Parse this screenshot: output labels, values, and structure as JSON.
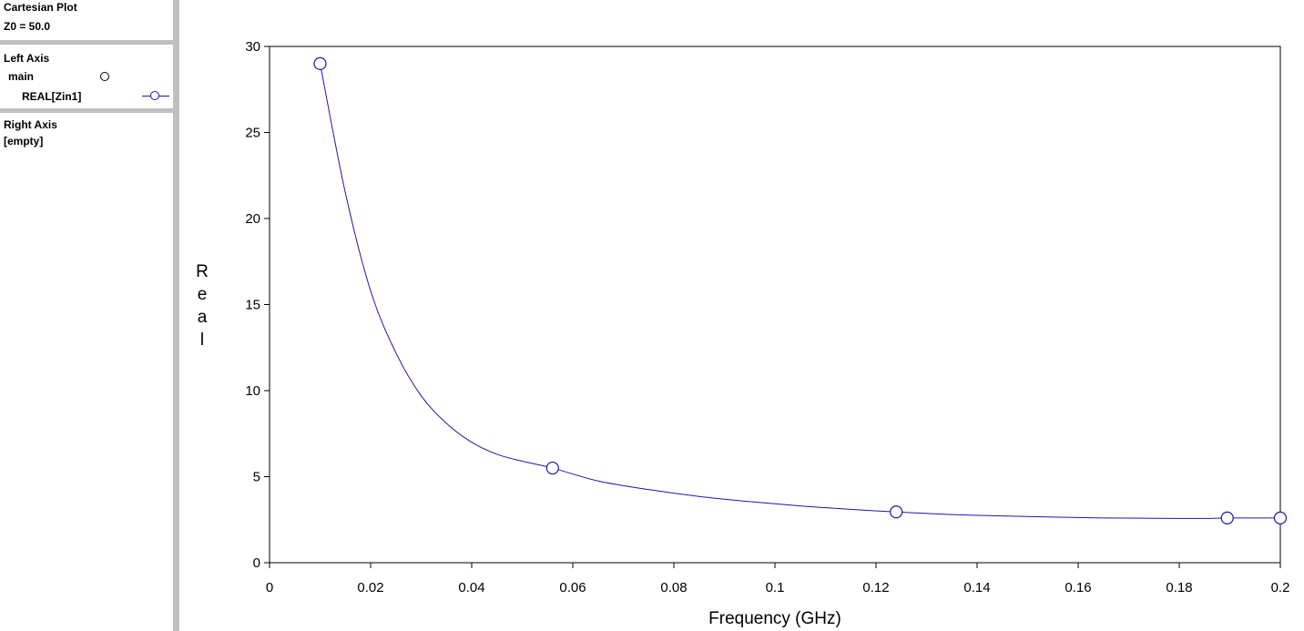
{
  "sidebar": {
    "title": "Cartesian Plot",
    "z0": "Z0 = 50.0",
    "left_axis": {
      "heading": "Left Axis",
      "group": "main",
      "trace": "REAL[Zin1]"
    },
    "right_axis": {
      "heading": "Right Axis",
      "value": "[empty]"
    }
  },
  "colors": {
    "trace": "#1a1aa6",
    "separator": "#c0c0c0"
  },
  "chart_data": {
    "type": "line",
    "xlabel": "Frequency (GHz)",
    "ylabel": "Real",
    "xlim": [
      0,
      0.2
    ],
    "ylim": [
      0,
      30
    ],
    "x_ticks": [
      "0",
      "0.02",
      "0.04",
      "0.06",
      "0.08",
      "0.1",
      "0.12",
      "0.14",
      "0.16",
      "0.18",
      "0.2"
    ],
    "y_ticks": [
      "0",
      "5",
      "10",
      "15",
      "20",
      "25",
      "30"
    ],
    "grid": false,
    "series": [
      {
        "name": "REAL[Zin1]",
        "marker": "circle",
        "x": [
          0.01,
          0.015,
          0.02,
          0.025,
          0.03,
          0.035,
          0.04,
          0.045,
          0.05,
          0.056,
          0.065,
          0.075,
          0.085,
          0.095,
          0.105,
          0.115,
          0.124,
          0.135,
          0.145,
          0.155,
          0.165,
          0.175,
          0.185,
          0.19,
          0.2
        ],
        "y": [
          29.0,
          21.5,
          15.8,
          12.2,
          9.7,
          8.1,
          7.0,
          6.3,
          5.9,
          5.5,
          4.75,
          4.25,
          3.85,
          3.55,
          3.3,
          3.1,
          2.95,
          2.8,
          2.72,
          2.65,
          2.6,
          2.58,
          2.57,
          2.6,
          2.6
        ],
        "marker_points": [
          {
            "x": 0.01,
            "y": 29.0
          },
          {
            "x": 0.056,
            "y": 5.5
          },
          {
            "x": 0.124,
            "y": 2.95
          },
          {
            "x": 0.1895,
            "y": 2.6
          },
          {
            "x": 0.2,
            "y": 2.6
          }
        ]
      }
    ]
  }
}
